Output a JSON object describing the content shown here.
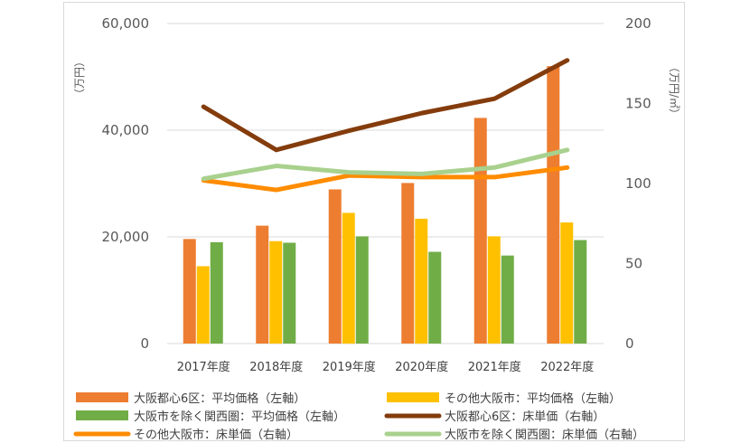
{
  "chart_data": {
    "type": "bar",
    "categories": [
      "2017年度",
      "2018年度",
      "2019年度",
      "2020年度",
      "2021年度",
      "2022年度"
    ],
    "y_left": {
      "label": "（万円）",
      "min": 0,
      "max": 60000,
      "ticks": [
        "0",
        "20,000",
        "40,000",
        "60,000"
      ],
      "tick_values": [
        0,
        20000,
        40000,
        60000
      ]
    },
    "y_right": {
      "label": "（万円/㎡）",
      "min": 0,
      "max": 200,
      "ticks": [
        "0",
        "50",
        "100",
        "150",
        "200"
      ],
      "tick_values": [
        0,
        50,
        100,
        150,
        200
      ]
    },
    "gridlines": true,
    "legend_position": "bottom",
    "bar_series": [
      {
        "name": "大阪都心6区：平均価格（左軸）",
        "color": "#ED7D31",
        "axis": "left",
        "values": [
          19600,
          22100,
          28900,
          30100,
          42300,
          52000
        ]
      },
      {
        "name": "その他大阪市：平均価格（左軸）",
        "color": "#FFC000",
        "axis": "left",
        "values": [
          14500,
          19200,
          24500,
          23400,
          20100,
          22700
        ]
      },
      {
        "name": "大阪市を除く関西圏：平均価格（左軸）",
        "color": "#70AD47",
        "axis": "left",
        "values": [
          19000,
          18900,
          20100,
          17200,
          16500,
          19400
        ]
      }
    ],
    "line_series": [
      {
        "name": "大阪都心6区：床単価（右軸）",
        "color": "#843C0C",
        "axis": "right",
        "values": [
          148,
          121,
          133,
          144,
          153,
          177
        ]
      },
      {
        "name": "その他大阪市：床単価（右軸）",
        "color": "#FF8C00",
        "axis": "right",
        "values": [
          102,
          96,
          105,
          104,
          104,
          110
        ]
      },
      {
        "name": "大阪市を除く関西圏：床単価（右軸）",
        "color": "#A9D18E",
        "axis": "right",
        "values": [
          103,
          111,
          107,
          106,
          110,
          121
        ]
      }
    ],
    "legend": [
      "大阪都心6区：平均価格（左軸）",
      "その他大阪市：平均価格（左軸）",
      "大阪市を除く関西圏：平均価格（左軸）",
      "大阪都心6区：床単価（右軸）",
      "その他大阪市：床単価（右軸）",
      "大阪市を除く関西圏：床単価（右軸）"
    ]
  }
}
